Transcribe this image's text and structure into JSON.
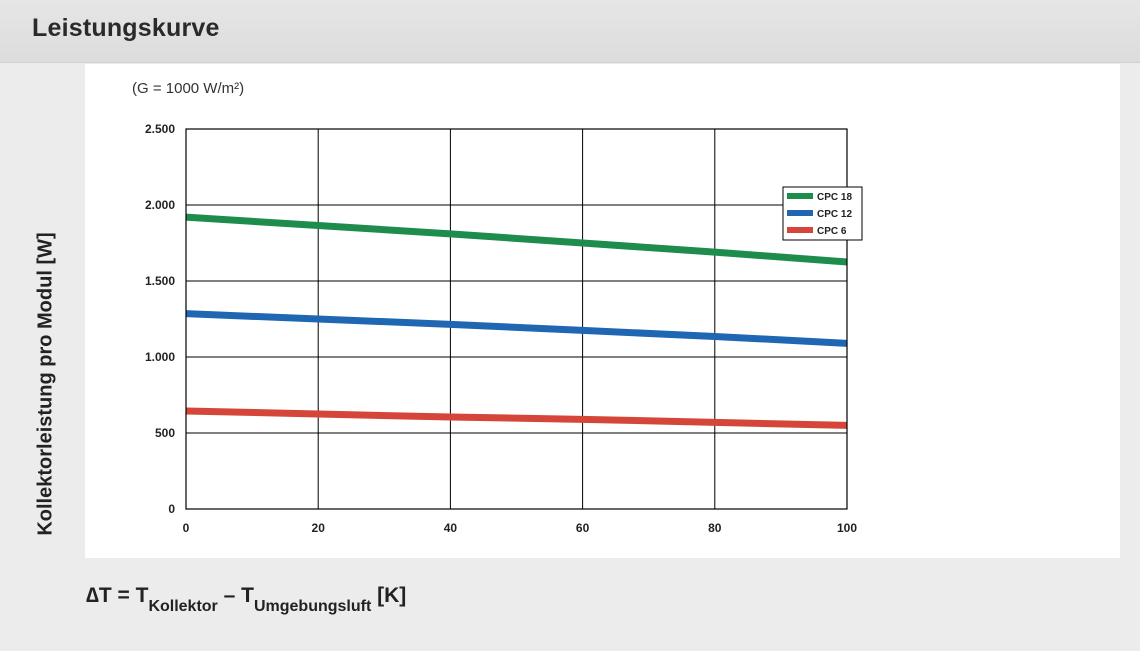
{
  "header": {
    "title": "Leistungskurve"
  },
  "chart_data": {
    "type": "line",
    "subtitle": "(G = 1000 W/m²)",
    "ylabel": "Kollektorleistung pro Modul [W]",
    "xlabel": {
      "lead": "∆T = T",
      "sub1": "Kollektor",
      "mid": " – T",
      "sub2": "Umgebungsluft",
      "tail": " [K]"
    },
    "xlim": [
      0,
      100
    ],
    "ylim": [
      0,
      2500
    ],
    "x_ticks": [
      0,
      20,
      40,
      60,
      80,
      100
    ],
    "x_tick_labels": [
      "0",
      "20",
      "40",
      "60",
      "80",
      "100"
    ],
    "y_ticks": [
      0,
      500,
      1000,
      1500,
      2000,
      2500
    ],
    "y_tick_labels": [
      "0",
      "500",
      "1.000",
      "1.500",
      "2.000",
      "2.500"
    ],
    "grid": true,
    "legend_position": "top-right",
    "x": [
      0,
      20,
      40,
      60,
      80,
      100
    ],
    "series": [
      {
        "name": "CPC 18",
        "color": "#1e8c4c",
        "values": [
          1920,
          1865,
          1810,
          1750,
          1690,
          1625
        ]
      },
      {
        "name": "CPC 12",
        "color": "#1f66b3",
        "values": [
          1285,
          1250,
          1215,
          1175,
          1135,
          1090
        ]
      },
      {
        "name": "CPC 6",
        "color": "#d5453a",
        "values": [
          645,
          625,
          605,
          590,
          570,
          550
        ]
      }
    ]
  }
}
